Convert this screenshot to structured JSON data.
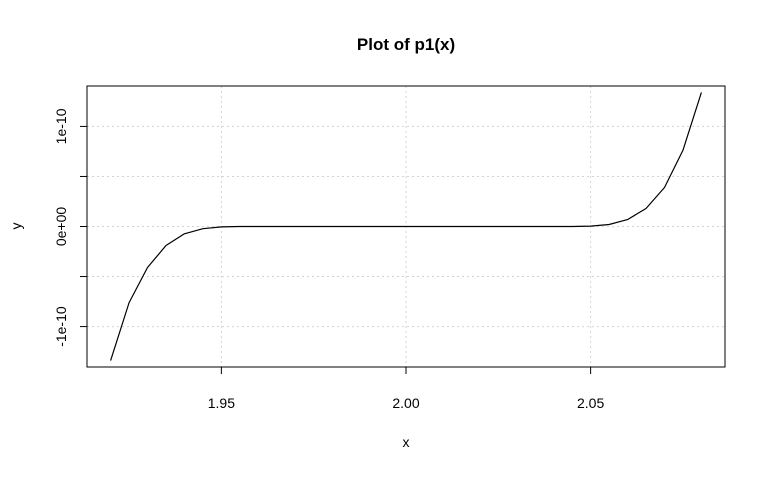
{
  "chart_data": {
    "type": "line",
    "title": "Plot of p1(x)",
    "xlabel": "x",
    "ylabel": "y",
    "xlim": [
      1.92,
      2.08
    ],
    "ylim": [
      -1.3e-10,
      1.3e-10
    ],
    "grid": true,
    "x_ticks": [
      {
        "value": 1.95,
        "label": "1.95"
      },
      {
        "value": 2.0,
        "label": "2.00"
      },
      {
        "value": 2.05,
        "label": "2.05"
      }
    ],
    "y_ticks": [
      {
        "value": -1e-10,
        "label": "-1e-10"
      },
      {
        "value": -5e-11,
        "label": ""
      },
      {
        "value": 0,
        "label": "0e+00"
      },
      {
        "value": 5e-11,
        "label": ""
      },
      {
        "value": 1e-10,
        "label": "1e-10"
      }
    ],
    "series": [
      {
        "x": [
          1.92,
          1.925,
          1.93,
          1.935,
          1.94,
          1.945,
          1.95,
          1.955,
          1.96,
          1.97,
          1.98,
          1.99,
          2.0,
          2.01,
          2.02,
          2.03,
          2.04,
          2.045,
          2.05,
          2.055,
          2.06,
          2.065,
          2.07,
          2.075,
          2.08
        ],
        "y": [
          -1.34e-10,
          -7.6e-11,
          -4.1e-11,
          -1.9e-11,
          -7.3e-12,
          -2.2e-12,
          -4.4e-13,
          -4.4e-14,
          0,
          0,
          0,
          0,
          0,
          0,
          0,
          0,
          0,
          3e-14,
          3.8e-13,
          2e-12,
          6.9e-12,
          1.8e-11,
          3.9e-11,
          7.6e-11,
          1.34e-10
        ]
      }
    ]
  }
}
